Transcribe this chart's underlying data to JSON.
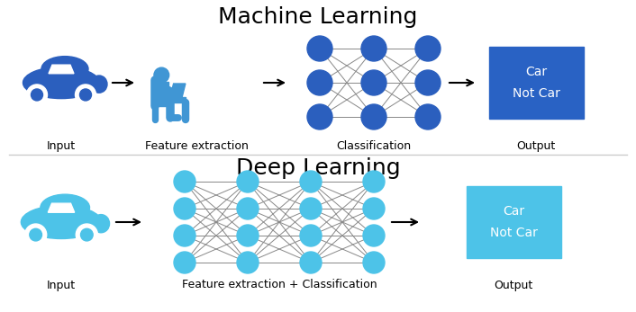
{
  "ml_title": "Machine Learning",
  "dl_title": "Deep Learning",
  "ml_labels": [
    "Input",
    "Feature extraction",
    "Classification",
    "Output"
  ],
  "dl_labels": [
    "Input",
    "Feature extraction + Classification",
    "Output"
  ],
  "ml_car_color": "#2b5fbe",
  "dl_car_color": "#4dc3e8",
  "ml_node_color": "#2b5fbe",
  "dl_node_color": "#4dc3e8",
  "ml_output_bg": "#2962c4",
  "dl_output_bg": "#4dc3e8",
  "output_text_color": "white",
  "output_text": [
    "Car",
    "Not Car"
  ],
  "bg_color": "white",
  "conn_color": "#888888",
  "arrow_color": "black",
  "title_fontsize": 18,
  "label_fontsize": 9,
  "person_color": "#4096d4"
}
